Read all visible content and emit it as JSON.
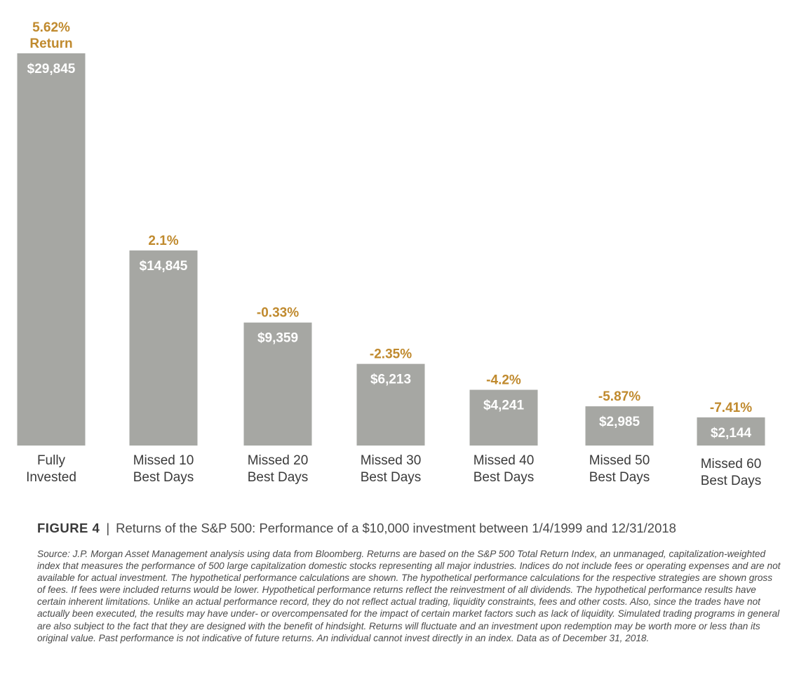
{
  "chart_data": {
    "type": "bar",
    "categories": [
      [
        "Fully",
        "Invested"
      ],
      [
        "Missed 10",
        "Best Days"
      ],
      [
        "Missed 20",
        "Best Days"
      ],
      [
        "Missed 30",
        "Best Days"
      ],
      [
        "Missed 40",
        "Best Days"
      ],
      [
        "Missed 50",
        "Best Days"
      ],
      [
        "Missed 60",
        "Best Days"
      ]
    ],
    "values": [
      29845,
      14845,
      9359,
      6213,
      4241,
      2985,
      2144
    ],
    "value_labels": [
      "$29,845",
      "$14,845",
      "$9,359",
      "$6,213",
      "$4,241",
      "$2,985",
      "$2,144"
    ],
    "return_labels": [
      [
        "5.62%",
        "Return"
      ],
      [
        "2.1%"
      ],
      [
        "-0.33%"
      ],
      [
        "-2.35%"
      ],
      [
        "-4.2%"
      ],
      [
        "-5.87%"
      ],
      [
        "-7.41%"
      ]
    ],
    "returns_percent": [
      5.62,
      2.1,
      -0.33,
      -2.35,
      -4.2,
      -5.87,
      -7.41
    ],
    "ylim": [
      0,
      29845
    ],
    "grid": false,
    "legend": "none",
    "colors": {
      "bar": "#a6a7a3",
      "return_text": "#c08a2e",
      "value_text": "#ffffff"
    }
  },
  "caption": {
    "figure_label": "FIGURE 4",
    "separator": "|",
    "title": "Returns of the S&P 500: Performance of a $10,000 investment between 1/4/1999 and 12/31/2018"
  },
  "source_text": "Source: J.P. Morgan Asset Management analysis using data from Bloomberg. Returns are based on the S&P 500 Total Return Index, an unmanaged, capitalization-weighted index that measures the performance of 500 large capitalization domestic stocks representing all major industries. Indices do not include fees or operating expenses and are not available for actual investment. The hypothetical performance calculations are shown. The hypothetical performance calculations for the respective strategies are shown gross of fees. If fees were included returns would be lower. Hypothetical performance returns reflect the reinvestment of all dividends. The hypothetical performance results have certain inherent limitations. Unlike an actual performance record, they do not reflect actual trading, liquidity constraints, fees and other costs. Also, since the trades have not actually been executed, the results may have under- or overcompensated for the impact of certain market factors such as lack of liquidity. Simulated trading programs in general are also subject to the fact that they are designed with the benefit of hindsight. Returns will fluctuate and an investment upon redemption may be worth more or less than its original value. Past performance is not indicative of future returns. An individual cannot invest directly in an index. Data as of December 31, 2018."
}
